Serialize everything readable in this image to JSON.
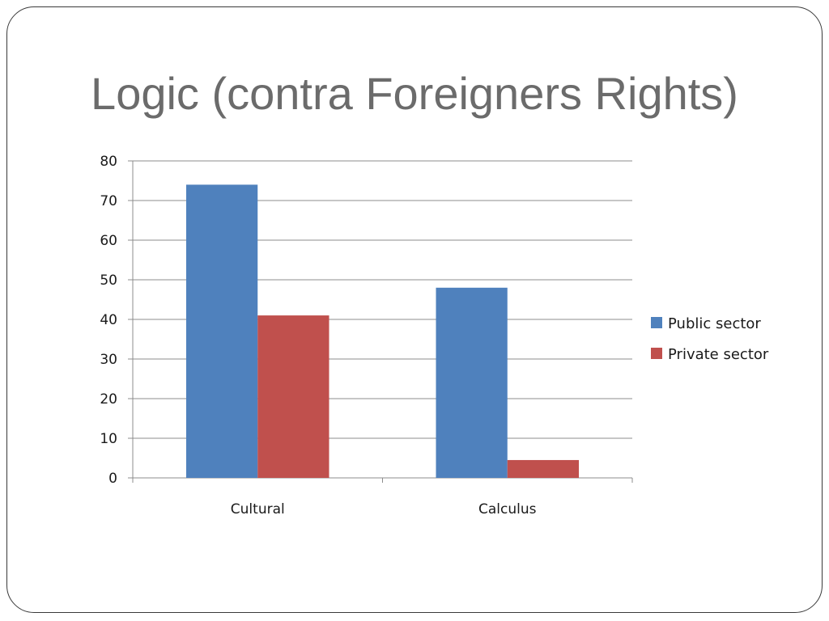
{
  "slide": {
    "title": "Logic (contra Foreigners Rights)"
  },
  "chart_data": {
    "type": "bar",
    "title": "",
    "xlabel": "",
    "ylabel": "",
    "categories": [
      "Cultural",
      "Calculus"
    ],
    "series": [
      {
        "name": "Public sector",
        "color": "#4f81bd",
        "values": [
          74,
          48
        ]
      },
      {
        "name": "Private sector",
        "color": "#c0504d",
        "values": [
          41,
          4.5
        ]
      }
    ],
    "ylim": [
      0,
      80
    ],
    "yticks": [
      0,
      10,
      20,
      30,
      40,
      50,
      60,
      70,
      80
    ],
    "grid": true,
    "legend_position": "right"
  }
}
